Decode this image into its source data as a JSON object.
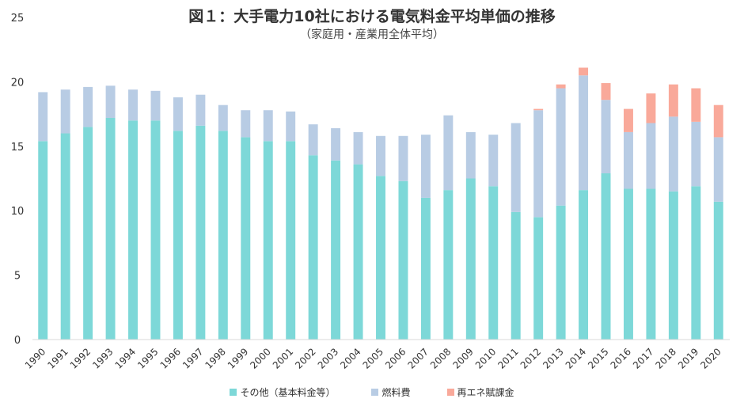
{
  "chart_data": {
    "type": "bar",
    "stacked": true,
    "title": "図１：大手電力10社における電気料金平均単価の推移",
    "subtitle": "（家庭用・産業用全体平均）",
    "xlabel": "",
    "ylabel": "",
    "ylim": [
      0,
      25
    ],
    "yticks": [
      0,
      5,
      10,
      15,
      20,
      25
    ],
    "grid": false,
    "legend_position": "bottom",
    "categories": [
      "1990",
      "1991",
      "1992",
      "1993",
      "1994",
      "1995",
      "1996",
      "1997",
      "1998",
      "1999",
      "2000",
      "2001",
      "2002",
      "2003",
      "2004",
      "2005",
      "2006",
      "2007",
      "2008",
      "2009",
      "2010",
      "2011",
      "2012",
      "2013",
      "2014",
      "2015",
      "2016",
      "2017",
      "2018",
      "2019",
      "2020"
    ],
    "series": [
      {
        "name": "その他（基本料金等）",
        "color": "#7dd8d8",
        "values": [
          15.4,
          16.0,
          16.5,
          17.2,
          17.0,
          17.0,
          16.2,
          16.6,
          16.2,
          15.7,
          15.4,
          15.4,
          14.3,
          13.9,
          13.6,
          12.7,
          12.3,
          11.0,
          11.6,
          12.5,
          11.9,
          9.9,
          9.5,
          10.4,
          11.6,
          12.9,
          11.7,
          11.7,
          11.5,
          11.9,
          10.7
        ]
      },
      {
        "name": "燃料費",
        "color": "#b8cce4",
        "values": [
          3.8,
          3.4,
          3.1,
          2.5,
          2.4,
          2.3,
          2.6,
          2.4,
          2.0,
          2.1,
          2.4,
          2.3,
          2.4,
          2.5,
          2.5,
          3.1,
          3.5,
          4.9,
          5.8,
          3.6,
          4.0,
          6.9,
          8.3,
          9.1,
          8.9,
          5.7,
          4.4,
          5.1,
          5.8,
          5.0,
          5.0
        ]
      },
      {
        "name": "再エネ賦課金",
        "color": "#f9a99a",
        "values": [
          0,
          0,
          0,
          0,
          0,
          0,
          0,
          0,
          0,
          0,
          0,
          0,
          0,
          0,
          0,
          0,
          0,
          0,
          0,
          0,
          0,
          0,
          0.1,
          0.3,
          0.6,
          1.3,
          1.8,
          2.3,
          2.5,
          2.6,
          2.5
        ]
      }
    ]
  }
}
